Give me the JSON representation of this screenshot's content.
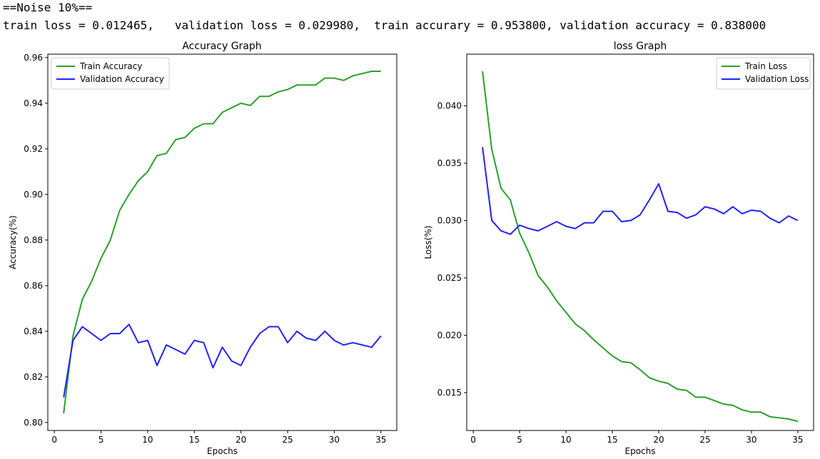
{
  "console": {
    "line1": "==Noise 10%==",
    "line2": "train loss = 0.012465,   validation loss = 0.029980,  train accurary = 0.953800, validation accuracy = 0.838000"
  },
  "chart_data": [
    {
      "type": "line",
      "title": "Accuracy Graph",
      "xlabel": "Epochs",
      "ylabel": "Accuracy(%)",
      "xlim": [
        -0.7,
        36.7
      ],
      "ylim": [
        0.7965,
        0.9615
      ],
      "xticks": [
        0,
        5,
        10,
        15,
        20,
        25,
        30,
        35
      ],
      "yticks": [
        0.8,
        0.82,
        0.84,
        0.86,
        0.88,
        0.9,
        0.92,
        0.94,
        0.96
      ],
      "ytick_labels": [
        "0.80",
        "0.82",
        "0.84",
        "0.86",
        "0.88",
        "0.90",
        "0.92",
        "0.94",
        "0.96"
      ],
      "legend_position": "top-left",
      "grid": false,
      "x": [
        1,
        2,
        3,
        4,
        5,
        6,
        7,
        8,
        9,
        10,
        11,
        12,
        13,
        14,
        15,
        16,
        17,
        18,
        19,
        20,
        21,
        22,
        23,
        24,
        25,
        26,
        27,
        28,
        29,
        30,
        31,
        32,
        33,
        34,
        35
      ],
      "series": [
        {
          "name": "Train Accuracy",
          "color": "#2ca02c",
          "values": [
            0.804,
            0.838,
            0.854,
            0.862,
            0.872,
            0.88,
            0.893,
            0.9,
            0.906,
            0.91,
            0.917,
            0.918,
            0.924,
            0.925,
            0.929,
            0.931,
            0.931,
            0.936,
            0.938,
            0.94,
            0.939,
            0.943,
            0.943,
            0.945,
            0.946,
            0.948,
            0.948,
            0.948,
            0.951,
            0.951,
            0.95,
            0.952,
            0.953,
            0.954,
            0.954
          ]
        },
        {
          "name": "Validation Accuracy",
          "color": "#2222ff",
          "values": [
            0.811,
            0.836,
            0.842,
            0.839,
            0.836,
            0.839,
            0.839,
            0.843,
            0.835,
            0.836,
            0.825,
            0.834,
            0.832,
            0.83,
            0.836,
            0.835,
            0.824,
            0.833,
            0.827,
            0.825,
            0.833,
            0.839,
            0.842,
            0.842,
            0.835,
            0.84,
            0.837,
            0.836,
            0.84,
            0.836,
            0.834,
            0.835,
            0.834,
            0.833,
            0.838
          ]
        }
      ]
    },
    {
      "type": "line",
      "title": "loss Graph",
      "xlabel": "Epochs",
      "ylabel": "Loss(%)",
      "xlim": [
        -0.7,
        36.7
      ],
      "ylim": [
        0.0117,
        0.0445
      ],
      "xticks": [
        0,
        5,
        10,
        15,
        20,
        25,
        30,
        35
      ],
      "yticks": [
        0.015,
        0.02,
        0.025,
        0.03,
        0.035,
        0.04
      ],
      "ytick_labels": [
        "0.015",
        "0.020",
        "0.025",
        "0.030",
        "0.035",
        "0.040"
      ],
      "legend_position": "top-right",
      "grid": false,
      "x": [
        1,
        2,
        3,
        4,
        5,
        6,
        7,
        8,
        9,
        10,
        11,
        12,
        13,
        14,
        15,
        16,
        17,
        18,
        19,
        20,
        21,
        22,
        23,
        24,
        25,
        26,
        27,
        28,
        29,
        30,
        31,
        32,
        33,
        34,
        35
      ],
      "series": [
        {
          "name": "Train Loss",
          "color": "#2ca02c",
          "values": [
            0.043,
            0.0362,
            0.0328,
            0.0318,
            0.0289,
            0.0272,
            0.0252,
            0.0242,
            0.023,
            0.022,
            0.021,
            0.0204,
            0.0196,
            0.0189,
            0.0182,
            0.0177,
            0.0176,
            0.017,
            0.0163,
            0.016,
            0.0158,
            0.0153,
            0.0152,
            0.0146,
            0.0146,
            0.0143,
            0.014,
            0.0139,
            0.0135,
            0.0133,
            0.0133,
            0.0129,
            0.0128,
            0.0127,
            0.0125
          ]
        },
        {
          "name": "Validation Loss",
          "color": "#2222ff",
          "values": [
            0.0364,
            0.03,
            0.0291,
            0.0288,
            0.0296,
            0.0293,
            0.0291,
            0.0295,
            0.0299,
            0.0295,
            0.0293,
            0.0298,
            0.0298,
            0.0308,
            0.0308,
            0.0299,
            0.03,
            0.0305,
            0.0318,
            0.0332,
            0.0308,
            0.0307,
            0.0302,
            0.0305,
            0.0312,
            0.031,
            0.0306,
            0.0312,
            0.0306,
            0.0309,
            0.0308,
            0.0302,
            0.0298,
            0.0304,
            0.03
          ]
        }
      ]
    }
  ]
}
